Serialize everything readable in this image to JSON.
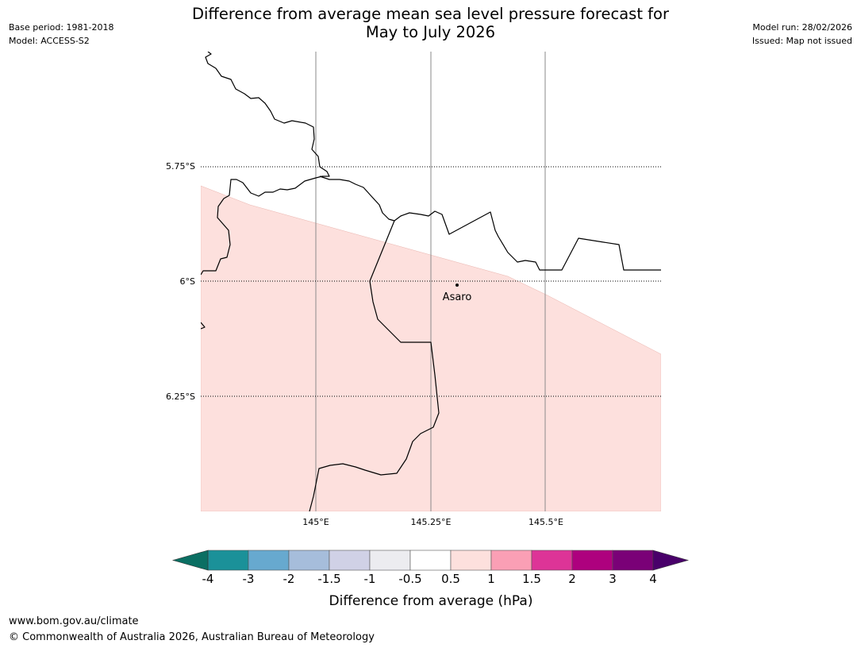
{
  "header": {
    "base_period": "Base period: 1981-2018",
    "model": "Model: ACCESS-S2",
    "title_line1": "Difference from average mean sea level pressure forecast for",
    "title_line2": "May to July 2026",
    "model_run": "Model run: 28/02/2026",
    "issued": "Issued: Map not issued"
  },
  "map": {
    "lat_labels": [
      "5.75°S",
      "6°S",
      "6.25°S"
    ],
    "lon_labels": [
      "145°E",
      "145.25°E",
      "145.5°E"
    ],
    "place": {
      "name": "Asaro"
    },
    "shaded_class": "0.5 to 1"
  },
  "legend": {
    "title": "Difference from average (hPa)",
    "ticks": [
      "-4",
      "-3",
      "-2",
      "-1.5",
      "-1",
      "-0.5",
      "0.5",
      "1",
      "1.5",
      "2",
      "3",
      "4"
    ],
    "colors": {
      "below_min": "#0b6f63",
      "bins": [
        "#1b9199",
        "#67a9cf",
        "#a6bddb",
        "#d0d1e6",
        "#ececf0",
        "#ffffff",
        "#fde0dd",
        "#fa9fb5",
        "#dd3497",
        "#ae017e",
        "#7a0177"
      ],
      "above_max": "#49006a"
    }
  },
  "footer": {
    "url": "www.bom.gov.au/climate",
    "copyright": "© Commonwealth of Australia 2026, Australian Bureau of Meteorology"
  }
}
